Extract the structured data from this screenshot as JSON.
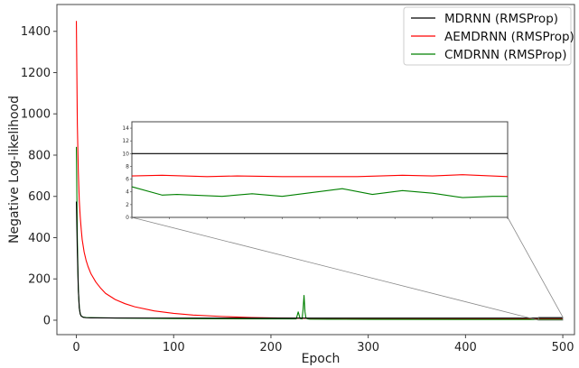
{
  "chart_data": {
    "type": "line",
    "xlabel": "Epoch",
    "ylabel": "Negative Log-likelihood",
    "xlim": [
      -20,
      512
    ],
    "ylim": [
      -70,
      1530
    ],
    "xticks": [
      0,
      100,
      200,
      300,
      400,
      500
    ],
    "yticks": [
      0,
      200,
      400,
      600,
      800,
      1000,
      1200,
      1400
    ],
    "legend_position": "top-right",
    "series": [
      {
        "name": "MDRNN (RMSProp)",
        "color": "#000000",
        "x": [
          0,
          1,
          2,
          3,
          4,
          5,
          7,
          10,
          15,
          20,
          40,
          80,
          150,
          230,
          300,
          400,
          500
        ],
        "y": [
          575,
          330,
          150,
          60,
          30,
          20,
          14,
          12,
          11,
          11,
          10.5,
          10.3,
          10.2,
          10.1,
          10,
          10,
          10
        ]
      },
      {
        "name": "AEMDRNN (RMSProp)",
        "color": "#ff0000",
        "x": [
          0,
          1,
          2,
          3,
          4,
          5,
          6,
          8,
          10,
          12,
          15,
          20,
          25,
          30,
          40,
          50,
          60,
          80,
          100,
          120,
          150,
          180,
          200,
          230,
          260,
          300,
          400,
          500
        ],
        "y": [
          1450,
          950,
          720,
          580,
          500,
          440,
          390,
          330,
          290,
          260,
          225,
          185,
          155,
          130,
          100,
          80,
          65,
          45,
          33,
          25,
          18,
          13,
          11,
          9,
          8,
          7,
          6.5,
          6.3
        ]
      },
      {
        "name": "CMDRNN (RMSProp)",
        "color": "#008000",
        "x": [
          0,
          1,
          2,
          3,
          4,
          5,
          7,
          10,
          20,
          50,
          100,
          200,
          226,
          228,
          230,
          232,
          233,
          234,
          235,
          236,
          238,
          240,
          260,
          300,
          400,
          500
        ],
        "y": [
          840,
          400,
          150,
          60,
          30,
          20,
          15,
          13,
          12,
          10,
          8,
          6,
          6,
          40,
          8,
          6,
          50,
          120,
          40,
          10,
          6,
          5,
          4.5,
          4,
          3.5,
          3.2
        ]
      }
    ],
    "inset": {
      "xlim": [
        475,
        500
      ],
      "ylim": [
        0,
        15
      ],
      "yticks": [
        0,
        2,
        4,
        6,
        8,
        10,
        12,
        14
      ],
      "series": [
        {
          "name": "MDRNN (RMSProp)",
          "color": "#000000",
          "x": [
            475,
            500
          ],
          "y": [
            10,
            10
          ]
        },
        {
          "name": "AEMDRNN (RMSProp)",
          "color": "#ff0000",
          "x": [
            475,
            477,
            480,
            482,
            485,
            488,
            490,
            493,
            495,
            497,
            500
          ],
          "y": [
            6.5,
            6.6,
            6.4,
            6.5,
            6.4,
            6.4,
            6.4,
            6.6,
            6.5,
            6.7,
            6.4
          ]
        },
        {
          "name": "CMDRNN (RMSProp)",
          "color": "#008000",
          "x": [
            475,
            477,
            478,
            481,
            483,
            485,
            487,
            489,
            491,
            493,
            495,
            497,
            499,
            500
          ],
          "y": [
            4.8,
            3.5,
            3.6,
            3.3,
            3.7,
            3.3,
            3.9,
            4.5,
            3.6,
            4.2,
            3.8,
            3.1,
            3.3,
            3.3
          ]
        }
      ]
    }
  }
}
